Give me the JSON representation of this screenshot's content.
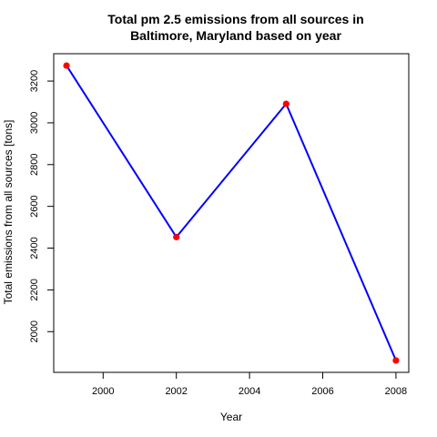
{
  "chart_data": {
    "type": "line",
    "title_line1": "Total pm 2.5 emissions from all sources in",
    "title_line2": "Baltimore, Maryland based on year",
    "xlabel": "Year",
    "ylabel": "Total emissions from all sources [tons]",
    "x": [
      1999,
      2002,
      2005,
      2008
    ],
    "y": [
      3274,
      2453,
      3091,
      1862
    ],
    "xticks": [
      2000,
      2002,
      2004,
      2006,
      2008
    ],
    "yticks": [
      2000,
      2200,
      2400,
      2600,
      2800,
      3000,
      3200
    ],
    "xlim": [
      1998.65,
      2008.35
    ],
    "ylim": [
      1805,
      3331
    ],
    "line_color": "#0000ff",
    "point_color": "#ff0000",
    "grid": false,
    "legend": false
  }
}
